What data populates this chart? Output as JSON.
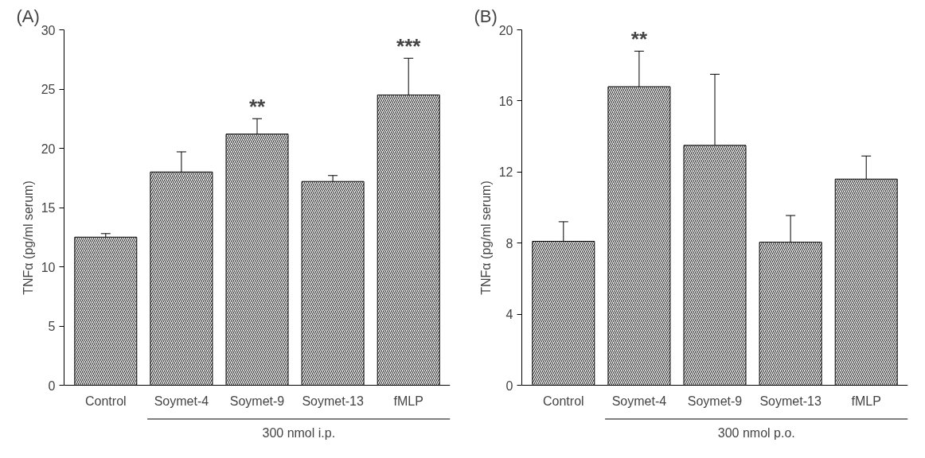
{
  "chart_data": [
    {
      "type": "bar",
      "title": "(A)",
      "ylabel": "TNFα (pg/ml serum)",
      "categories": [
        "Control",
        "Soymet-4",
        "Soymet-9",
        "Soymet-13",
        "fMLP"
      ],
      "values": [
        12.5,
        18.0,
        21.2,
        17.2,
        24.5
      ],
      "errors": [
        0.3,
        1.7,
        1.3,
        0.5,
        3.1
      ],
      "color": "#000000",
      "ylim": [
        0,
        30
      ],
      "yticks": [
        0,
        5,
        10,
        15,
        20,
        25,
        30
      ],
      "grid": false,
      "annotations": [
        {
          "text": "**",
          "x": "Soymet-9",
          "y": 22.5
        },
        {
          "text": "***",
          "x": "fMLP",
          "y": 27.6
        },
        "300 nmol i.p."
      ]
    },
    {
      "type": "bar",
      "title": "(B)",
      "ylabel": "TNFα (pg/ml serum)",
      "categories": [
        "Control",
        "Soymet-4",
        "Soymet-9",
        "Soymet-13",
        "fMLP"
      ],
      "values": [
        8.1,
        16.8,
        13.5,
        8.05,
        11.6
      ],
      "errors": [
        1.1,
        2.0,
        4.0,
        1.5,
        1.3
      ],
      "color": "#000000",
      "ylim": [
        0,
        20
      ],
      "yticks": [
        0,
        4,
        8,
        12,
        16,
        20
      ],
      "grid": false,
      "annotations": [
        {
          "text": "**",
          "x": "Soymet-4",
          "y": 18.8
        },
        "300 nmol p.o."
      ]
    }
  ]
}
